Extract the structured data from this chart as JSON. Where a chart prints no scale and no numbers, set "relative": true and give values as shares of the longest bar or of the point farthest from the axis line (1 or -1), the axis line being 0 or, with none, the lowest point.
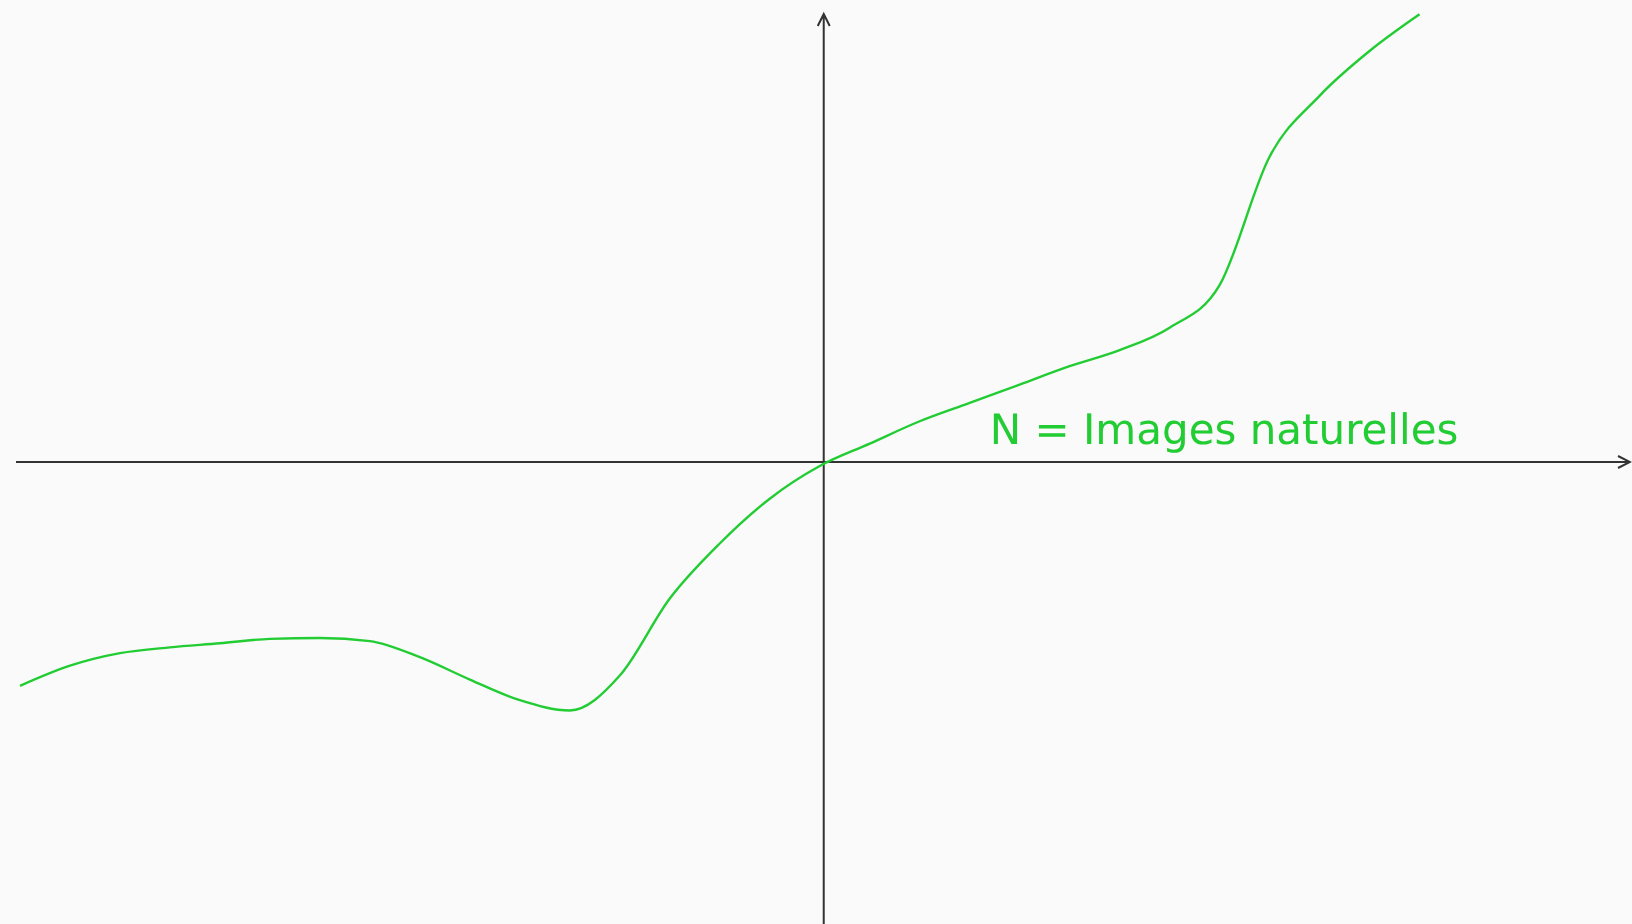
{
  "chart_data": {
    "type": "line",
    "relative": true,
    "categories": [
      null,
      null,
      null,
      null,
      null,
      null,
      null,
      null,
      null,
      null,
      null,
      null,
      null,
      null,
      null,
      null,
      null,
      null,
      null,
      null,
      null,
      null,
      null,
      null,
      null,
      null,
      null,
      null,
      null
    ],
    "series": [
      {
        "name": "N = Images naturelles",
        "color": "#22cc33",
        "values": [
          -0.5,
          -0.455,
          -0.427,
          -0.414,
          -0.405,
          -0.395,
          -0.393,
          -0.4,
          -0.436,
          -0.486,
          -0.532,
          -0.555,
          -0.477,
          -0.305,
          -0.182,
          -0.082,
          -0.009,
          0.041,
          0.091,
          0.132,
          0.173,
          0.214,
          0.25,
          0.3,
          0.395,
          0.682,
          0.818,
          0.918,
          1
        ]
      }
    ],
    "marker": "none",
    "line_style": "solid"
  }
}
